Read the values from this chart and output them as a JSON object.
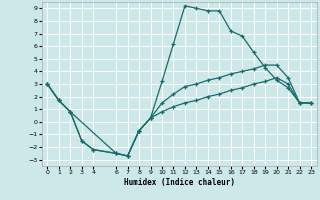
{
  "xlabel": "Humidex (Indice chaleur)",
  "background_color": "#cde8e8",
  "grid_color": "#ffffff",
  "line_color": "#1a6b6b",
  "xlim": [
    -0.5,
    23.5
  ],
  "ylim": [
    -3.5,
    9.5
  ],
  "xticks": [
    0,
    1,
    2,
    3,
    4,
    6,
    7,
    8,
    9,
    10,
    11,
    12,
    13,
    14,
    15,
    16,
    17,
    18,
    19,
    20,
    21,
    22,
    23
  ],
  "yticks": [
    -3,
    -2,
    -1,
    0,
    1,
    2,
    3,
    4,
    5,
    6,
    7,
    8,
    9
  ],
  "line1_x": [
    0,
    1,
    2,
    3,
    4,
    6,
    7,
    8,
    9,
    10,
    11,
    12,
    13,
    14,
    15,
    16,
    17,
    18,
    19,
    20,
    21,
    22,
    23
  ],
  "line1_y": [
    3.0,
    1.7,
    0.8,
    -1.5,
    -2.2,
    -2.5,
    -2.7,
    -0.7,
    0.3,
    3.2,
    6.2,
    9.2,
    9.0,
    8.8,
    8.8,
    7.2,
    6.8,
    5.5,
    4.3,
    3.3,
    2.7,
    1.5,
    1.5
  ],
  "line2_x": [
    0,
    1,
    2,
    6,
    7,
    8,
    9,
    10,
    11,
    12,
    13,
    14,
    15,
    16,
    17,
    18,
    19,
    20,
    21,
    22,
    23
  ],
  "line2_y": [
    3.0,
    1.7,
    0.8,
    -2.5,
    -2.7,
    -0.7,
    0.3,
    1.5,
    2.2,
    2.8,
    3.0,
    3.3,
    3.5,
    3.8,
    4.0,
    4.2,
    4.5,
    4.5,
    3.5,
    1.5,
    1.5
  ],
  "line3_x": [
    0,
    1,
    2,
    3,
    4,
    6,
    7,
    8,
    9,
    10,
    11,
    12,
    13,
    14,
    15,
    16,
    17,
    18,
    19,
    20,
    21,
    22,
    23
  ],
  "line3_y": [
    3.0,
    1.7,
    0.8,
    -1.5,
    -2.2,
    -2.5,
    -2.7,
    -0.7,
    0.3,
    0.8,
    1.2,
    1.5,
    1.7,
    2.0,
    2.2,
    2.5,
    2.7,
    3.0,
    3.2,
    3.5,
    3.0,
    1.5,
    1.5
  ]
}
